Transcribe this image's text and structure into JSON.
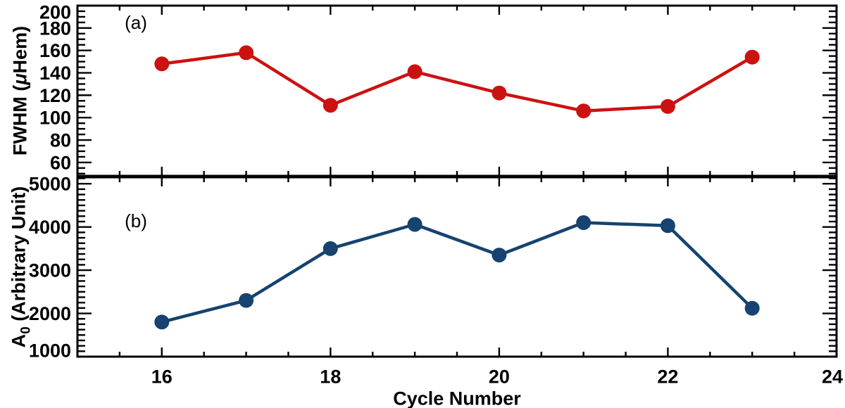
{
  "figure": {
    "background": "#ffffff",
    "axis_color": "#000000",
    "xlabel": "Cycle Number",
    "xlim": [
      15,
      24
    ],
    "xticks": [
      16,
      18,
      20,
      22,
      24
    ],
    "x_minor_step": 0.5
  },
  "chart_data": [
    {
      "type": "line",
      "panel_label": "(a)",
      "ylabel": "FWHM (μHem)",
      "ylabel_parts": [
        {
          "t": "FWHM ("
        },
        {
          "t": "μ",
          "italic": true
        },
        {
          "t": "Hem)"
        }
      ],
      "x": [
        16,
        17,
        18,
        19,
        20,
        21,
        22,
        23
      ],
      "series": [
        {
          "name": "FWHM",
          "color": "#cc1111",
          "marker": "circle",
          "values": [
            148,
            158,
            111,
            141,
            122,
            106,
            110,
            154
          ]
        }
      ],
      "ylim": [
        48,
        200
      ],
      "yticks": [
        60,
        80,
        100,
        120,
        140,
        160,
        180,
        200
      ],
      "y_minor_step": 5,
      "grid": false,
      "legend": "none"
    },
    {
      "type": "line",
      "panel_label": "(b)",
      "ylabel": "A₀ (Arbitrary Unit)",
      "ylabel_parts": [
        {
          "t": "A"
        },
        {
          "t": "0",
          "sub": true
        },
        {
          "t": " (Arbitrary Unit)"
        }
      ],
      "x": [
        16,
        17,
        18,
        19,
        20,
        21,
        22,
        23
      ],
      "series": [
        {
          "name": "A0",
          "color": "#16436F",
          "marker": "circle",
          "values": [
            1800,
            2300,
            3500,
            4060,
            3350,
            4100,
            4030,
            2120
          ]
        }
      ],
      "ylim": [
        1000,
        5150
      ],
      "yticks": [
        1000,
        2000,
        3000,
        4000,
        5000
      ],
      "y_minor_step": 125,
      "grid": false,
      "legend": "none"
    }
  ]
}
